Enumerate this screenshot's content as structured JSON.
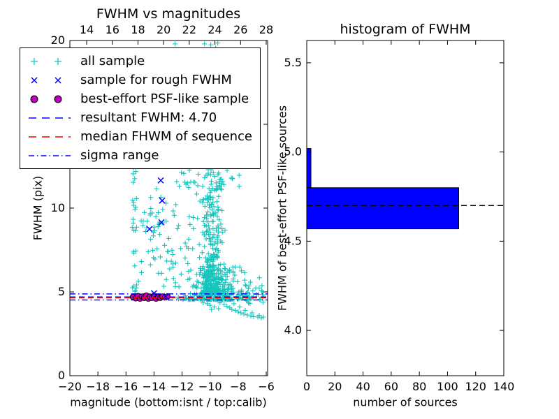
{
  "figure_bg": "#ffffff",
  "colors": {
    "all_sample": "#15c5bd",
    "rough_sample": "#0000ff",
    "psf_sample": "#bf00bf",
    "psf_sample_edge": "#000000",
    "resultant_line": "#0000ff",
    "median_line": "#ff0000",
    "sigma_line": "#0000ff",
    "hist_bar": "#0000ff",
    "hist_bar_edge": "#000000",
    "hist_median_line": "#000000",
    "frame": "#000000"
  },
  "chart_data": [
    {
      "type": "scatter",
      "title": "FWHM vs magnitudes",
      "xlabel": "magnitude (bottom:isnt / top:calib)",
      "ylabel": "FWHM (pix)",
      "xlim": [
        -20,
        -5.9
      ],
      "ylim": [
        0,
        20
      ],
      "xticks": [
        -20,
        -18,
        -16,
        -14,
        -12,
        -10,
        -8,
        -6
      ],
      "xtick_labels": [
        "−20",
        "−18",
        "−16",
        "−14",
        "−12",
        "−10",
        "−8",
        "−6"
      ],
      "yticks": [
        0,
        5,
        10,
        15,
        20
      ],
      "ytick_labels": [
        "0",
        "5",
        "10",
        "15",
        "20"
      ],
      "top_axis": {
        "lim": [
          12.69,
          28.11
        ],
        "ticks": [
          14,
          16,
          18,
          20,
          22,
          24,
          26,
          28
        ],
        "tick_labels": [
          "14",
          "16",
          "18",
          "20",
          "22",
          "24",
          "26",
          "28"
        ]
      },
      "legend": [
        {
          "label": "all sample",
          "marker": "plus",
          "color_key": "all_sample"
        },
        {
          "label": "sample for rough FWHM",
          "marker": "x",
          "color_key": "rough_sample"
        },
        {
          "label": "best-effort PSF-like sample",
          "marker": "circle",
          "color_key": "psf_sample"
        },
        {
          "label": "resultant FWHM: 4.70",
          "marker": "dashed-line",
          "color_key": "resultant_line"
        },
        {
          "label": "median FHWM of sequence",
          "marker": "dashed-line",
          "color_key": "median_line"
        },
        {
          "label": "sigma range",
          "marker": "dashdot-line",
          "color_key": "sigma_line"
        }
      ],
      "series": [
        {
          "name": "all sample",
          "marker": "plus",
          "color_key": "all_sample",
          "clusters": [
            {
              "n": 26,
              "x": {
                "dist": "uniform",
                "a": -15.55,
                "b": -15.2
              },
              "y": {
                "dist": "uniform",
                "a": 4.8,
                "b": 13.4
              }
            },
            {
              "n": 32,
              "x": {
                "dist": "gauss",
                "mu": -14.1,
                "s": 0.55
              },
              "y": {
                "dist": "gauss",
                "mu": 9.4,
                "s": 0.85
              }
            },
            {
              "n": 22,
              "x": {
                "dist": "uniform",
                "a": -15.3,
                "b": -12.6
              },
              "y": {
                "dist": "uniform",
                "a": 5.2,
                "b": 7.8
              }
            },
            {
              "n": 28,
              "x": {
                "dist": "uniform",
                "a": -12.8,
                "b": -10.4
              },
              "y": {
                "dist": "uniform",
                "a": 5.3,
                "b": 10.5
              }
            },
            {
              "n": 380,
              "x": {
                "dist": "gauss",
                "mu": -9.85,
                "s": 0.38
              },
              "y": {
                "dist": "power",
                "a": 4.9,
                "b": 12.3,
                "k": 2.6
              }
            },
            {
              "n": 25,
              "x": {
                "dist": "uniform",
                "a": -12.6,
                "b": -7.9
              },
              "y": {
                "dist": "uniform",
                "a": 11.2,
                "b": 12.3
              }
            },
            {
              "n": 260,
              "x": {
                "dist": "gauss",
                "mu": -9.6,
                "s": 1.15
              },
              "y": {
                "dist": "power",
                "a": 4.55,
                "b": 6.6,
                "k": 3.0
              }
            },
            {
              "n": 26,
              "x": {
                "dist": "uniform",
                "a": -7.6,
                "b": -6.05
              },
              "y": {
                "dist": "uniform",
                "a": 4.3,
                "b": 5.6
              }
            }
          ],
          "points": [
            [
              -12.5,
              19.8
            ],
            [
              -10.4,
              19.8
            ],
            [
              -9.95,
              19.75
            ],
            [
              -9.6,
              19.55
            ],
            [
              -9.45,
              19.85
            ],
            [
              -10.5,
              4.35
            ],
            [
              -10.2,
              4.3
            ],
            [
              -10.0,
              4.2
            ],
            [
              -9.9,
              3.95
            ],
            [
              -9.7,
              4.1
            ],
            [
              -9.4,
              4.0
            ],
            [
              -9.3,
              4.35
            ],
            [
              -9.0,
              4.25
            ],
            [
              -8.8,
              4.15
            ],
            [
              -8.6,
              4.05
            ],
            [
              -8.45,
              3.95
            ],
            [
              -8.3,
              4.3
            ],
            [
              -8.2,
              3.9
            ],
            [
              -8.0,
              3.8
            ],
            [
              -7.9,
              4.1
            ],
            [
              -7.8,
              3.75
            ],
            [
              -7.6,
              3.68
            ],
            [
              -7.5,
              3.9
            ],
            [
              -7.35,
              3.62
            ],
            [
              -7.1,
              3.56
            ],
            [
              -7.0,
              3.75
            ],
            [
              -6.9,
              3.52
            ],
            [
              -6.6,
              3.5
            ],
            [
              -6.5,
              3.6
            ],
            [
              -6.35,
              3.45
            ],
            [
              -6.2,
              3.5
            ]
          ]
        },
        {
          "name": "sample for rough FWHM",
          "marker": "x",
          "color_key": "rough_sample",
          "points": [
            [
              -13.52,
              11.65
            ],
            [
              -13.42,
              10.45
            ],
            [
              -13.47,
              9.15
            ],
            [
              -14.32,
              8.75
            ],
            [
              -14.0,
              4.92
            ],
            [
              -13.17,
              4.72
            ]
          ]
        },
        {
          "name": "best-effort PSF-like sample",
          "marker": "circle",
          "color_key": "psf_sample",
          "points": [
            [
              -15.5,
              4.7
            ],
            [
              -15.3,
              4.62
            ],
            [
              -15.15,
              4.75
            ],
            [
              -15.0,
              4.6
            ],
            [
              -14.85,
              4.72
            ],
            [
              -14.7,
              4.65
            ],
            [
              -14.55,
              4.78
            ],
            [
              -14.4,
              4.6
            ],
            [
              -14.3,
              4.72
            ],
            [
              -14.15,
              4.65
            ],
            [
              -14.0,
              4.75
            ],
            [
              -13.85,
              4.6
            ],
            [
              -13.7,
              4.7
            ],
            [
              -13.55,
              4.65
            ],
            [
              -13.4,
              4.72
            ],
            [
              -13.2,
              4.68
            ],
            [
              -13.05,
              4.73
            ]
          ]
        }
      ],
      "lines": [
        {
          "name": "resultant FWHM",
          "value": 4.7,
          "style": "dashed",
          "color_key": "resultant_line"
        },
        {
          "name": "median FHWM of sequence",
          "value": 4.65,
          "style": "dashed",
          "color_key": "median_line"
        },
        {
          "name": "sigma range low",
          "value": 4.52,
          "style": "dashdot",
          "color_key": "sigma_line"
        },
        {
          "name": "sigma range high",
          "value": 4.88,
          "style": "dashdot",
          "color_key": "sigma_line"
        }
      ]
    },
    {
      "type": "bar",
      "orientation": "horizontal",
      "title": "histogram of FWHM",
      "xlabel": "number of sources",
      "ylabel": "FWHM of best-effort PSF-like sources",
      "xlim": [
        0,
        140
      ],
      "ylim": [
        3.746,
        5.625
      ],
      "xticks": [
        0,
        20,
        40,
        60,
        80,
        100,
        120,
        140
      ],
      "xtick_labels": [
        "0",
        "20",
        "40",
        "60",
        "80",
        "100",
        "120",
        "140"
      ],
      "yticks": [
        4.0,
        4.5,
        5.0,
        5.5
      ],
      "ytick_labels": [
        "4.0",
        "4.5",
        "5.0",
        "5.5"
      ],
      "bars": [
        {
          "y0": 4.57,
          "y1": 4.8,
          "value": 108
        },
        {
          "y0": 4.8,
          "y1": 5.02,
          "value": 3
        }
      ],
      "hline": {
        "name": "median FWHM",
        "value": 4.7,
        "style": "dashed",
        "color_key": "hist_median_line"
      }
    }
  ]
}
